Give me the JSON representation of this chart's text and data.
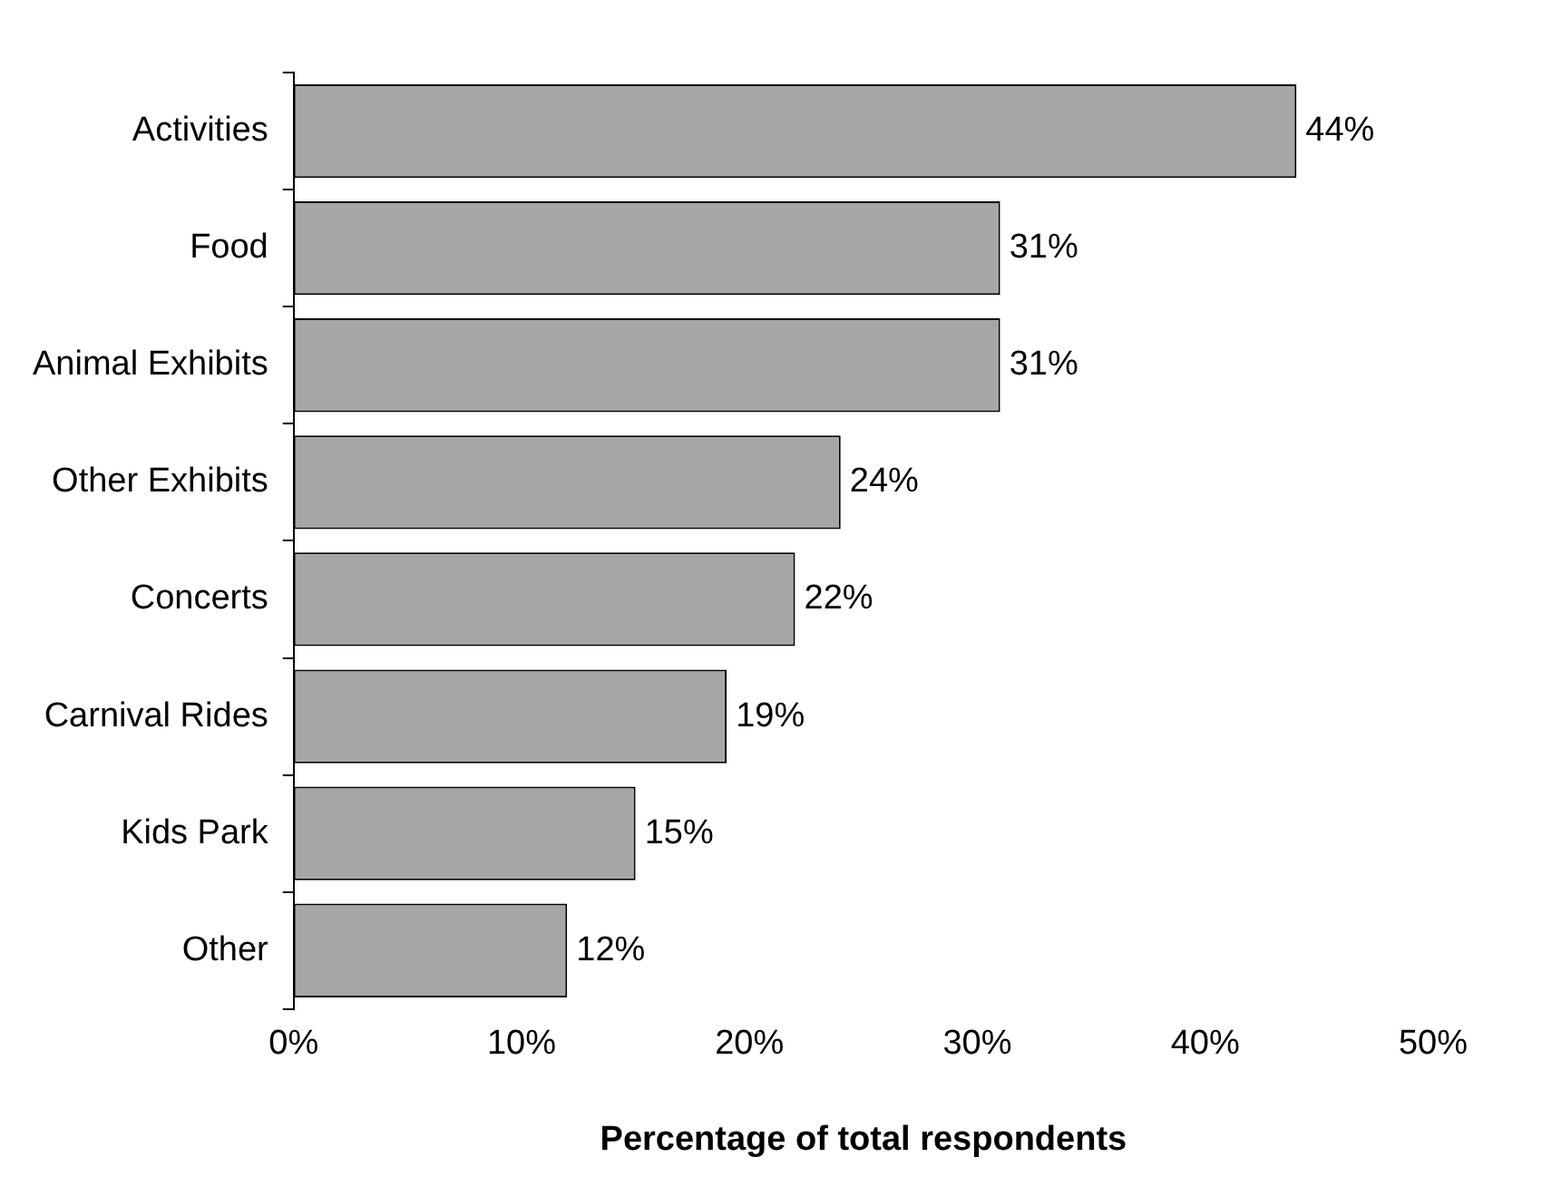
{
  "chart_data": {
    "type": "bar",
    "orientation": "horizontal",
    "xlabel": "Percentage of total respondents",
    "categories": [
      "Activities",
      "Food",
      "Animal Exhibits",
      "Other Exhibits",
      "Concerts",
      "Carnival Rides",
      "Kids Park",
      "Other"
    ],
    "values": [
      44,
      31,
      31,
      24,
      22,
      19,
      15,
      12
    ],
    "value_labels": [
      "44%",
      "31%",
      "31%",
      "24%",
      "22%",
      "19%",
      "15%",
      "12%"
    ],
    "color": "#a6a6a6",
    "xlim": [
      0,
      50
    ],
    "xticks": [
      {
        "value": 0,
        "label": "0%"
      },
      {
        "value": 10,
        "label": "10%"
      },
      {
        "value": 20,
        "label": "20%"
      },
      {
        "value": 30,
        "label": "30%"
      },
      {
        "value": 40,
        "label": "40%"
      },
      {
        "value": 50,
        "label": "50%"
      }
    ],
    "grid": false,
    "legend": false
  }
}
